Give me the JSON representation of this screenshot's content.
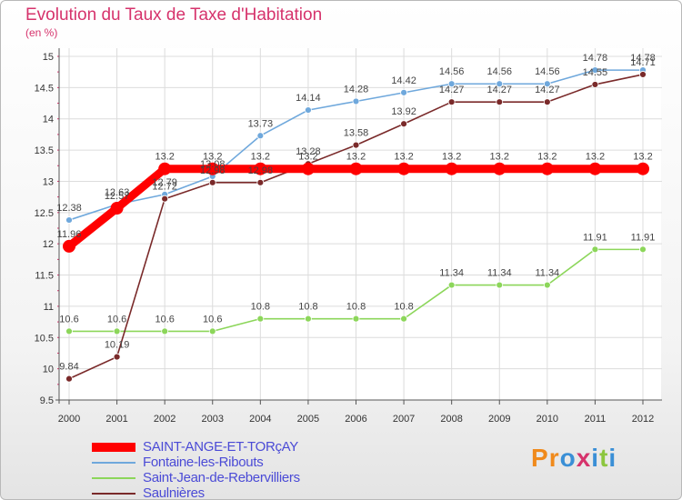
{
  "title": "Evolution du Taux de Taxe d'Habitation",
  "subtitle": "(en %)",
  "logo": {
    "letters": [
      "P",
      "r",
      "o",
      "x",
      "i",
      "t",
      "i"
    ],
    "colors": [
      "#f08a1c",
      "#f08a1c",
      "#3a8fd6",
      "#d6336c",
      "#3a8fd6",
      "#8cc63f",
      "#3a8fd6"
    ]
  },
  "chart_data": {
    "type": "line",
    "x": [
      2000,
      2001,
      2002,
      2003,
      2004,
      2005,
      2006,
      2007,
      2008,
      2009,
      2010,
      2011,
      2012
    ],
    "ylim": [
      9.5,
      15
    ],
    "yticks": [
      9.5,
      10,
      10.5,
      11,
      11.5,
      12,
      12.5,
      13,
      13.5,
      14,
      14.5,
      15
    ],
    "grid": true,
    "legend_position": "bottom-left",
    "series": [
      {
        "name": "SAINT-ANGE-ET-TORçAY",
        "color": "#ff0000",
        "values": [
          11.96,
          12.57,
          13.2,
          13.2,
          13.2,
          13.2,
          13.2,
          13.2,
          13.2,
          13.2,
          13.2,
          13.2,
          13.2
        ],
        "labels": [
          "11.96",
          "12.57",
          "13.2",
          "13.2",
          "13.2",
          "13.2",
          "13.2",
          "13.2",
          "13.2",
          "13.2",
          "13.2",
          "13.2",
          "13.2"
        ]
      },
      {
        "name": "Fontaine-les-Ribouts",
        "color": "#6fa8dc",
        "values": [
          12.38,
          12.63,
          12.79,
          13.08,
          13.73,
          14.14,
          14.28,
          14.42,
          14.56,
          14.56,
          14.56,
          14.78,
          14.78
        ],
        "labels": [
          "12.38",
          "12.63",
          "12.79",
          "13.08",
          "13.73",
          "14.14",
          "14.28",
          "14.42",
          "14.56",
          "14.56",
          "14.56",
          "14.78",
          "14.78"
        ]
      },
      {
        "name": "Saint-Jean-de-Rebervilliers",
        "color": "#8cd65a",
        "values": [
          10.6,
          10.6,
          10.6,
          10.6,
          10.8,
          10.8,
          10.8,
          10.8,
          11.34,
          11.34,
          11.34,
          11.91,
          11.91
        ],
        "labels": [
          "10.6",
          "10.6",
          "10.6",
          "10.6",
          "10.8",
          "10.8",
          "10.8",
          "10.8",
          "11.34",
          "11.34",
          "11.34",
          "11.91",
          "11.91"
        ]
      },
      {
        "name": "Saulnières",
        "color": "#7a2a2a",
        "values": [
          9.84,
          10.19,
          12.72,
          12.98,
          12.98,
          13.28,
          13.58,
          13.92,
          14.27,
          14.27,
          14.27,
          14.55,
          14.71
        ],
        "labels": [
          "9.84",
          "10.19",
          "12.72",
          "12.98",
          "12.98",
          "13.28",
          "13.58",
          "13.92",
          "14.27",
          "14.27",
          "14.27",
          "14.55",
          "14.71"
        ]
      }
    ]
  }
}
